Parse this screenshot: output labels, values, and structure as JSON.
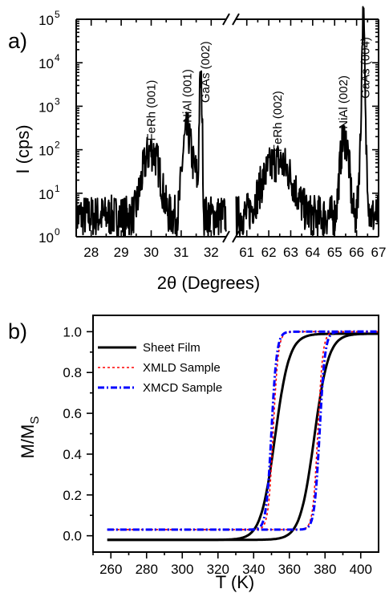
{
  "chart_data": [
    {
      "panel": "a)",
      "type": "line",
      "ylabel": "I (cps)",
      "xlabel": "2θ (Degrees)",
      "yscale": "log",
      "ylim": [
        1,
        100000
      ],
      "y_tick_labels": [
        {
          "v": 1,
          "base": "10",
          "exp": "0"
        },
        {
          "v": 10,
          "base": "10",
          "exp": "1"
        },
        {
          "v": 100,
          "base": "10",
          "exp": "2"
        },
        {
          "v": 1000,
          "base": "10",
          "exp": "3"
        },
        {
          "v": 10000,
          "base": "10",
          "exp": "4"
        },
        {
          "v": 100000,
          "base": "10",
          "exp": "5"
        }
      ],
      "x_break": true,
      "x_segments": [
        {
          "xlim": [
            27.5,
            32.5
          ],
          "ticks": [
            "28",
            "29",
            "30",
            "31",
            "32"
          ]
        },
        {
          "xlim": [
            60.5,
            67
          ],
          "ticks": [
            "61",
            "62",
            "63",
            "64",
            "65",
            "66",
            "67"
          ]
        }
      ],
      "peak_labels": [
        {
          "text": "FeRh (001)",
          "x": 30.0,
          "y": 160
        },
        {
          "text": "NiAl (001)",
          "x": 31.2,
          "y": 420
        },
        {
          "text": "GaAs (002)",
          "x": 31.8,
          "y": 1200
        },
        {
          "text": "FeRh (002)",
          "x": 62.4,
          "y": 90
        },
        {
          "text": "NiAl (002)",
          "x": 65.4,
          "y": 300
        },
        {
          "text": "GaAs (004)",
          "x": 66.4,
          "y": 1500
        }
      ],
      "series": [
        {
          "segment": 0,
          "peaks": [
            {
              "x": 30.0,
              "height": 90,
              "width": 0.18
            },
            {
              "x": 31.2,
              "height": 250,
              "width": 0.09
            },
            {
              "x": 31.45,
              "height": 30,
              "width": 0.08
            },
            {
              "x": 31.65,
              "height": 4000,
              "width": 0.025
            }
          ],
          "background": 3
        },
        {
          "segment": 1,
          "peaks": [
            {
              "x": 62.4,
              "height": 50,
              "width": 0.45
            },
            {
              "x": 65.45,
              "height": 180,
              "width": 0.12
            },
            {
              "x": 66.3,
              "height": 100000,
              "width": 0.03
            },
            {
              "x": 66.3,
              "height": 500,
              "width": 0.08
            }
          ],
          "background": 3
        }
      ]
    },
    {
      "panel": "b)",
      "type": "line",
      "ylabel_base": "M/M",
      "ylabel_sub": "S",
      "xlabel": "T (K)",
      "xlim": [
        250,
        410
      ],
      "ylim": [
        -0.08,
        1.08
      ],
      "x_ticks": [
        "260",
        "280",
        "300",
        "320",
        "340",
        "360",
        "380",
        "400"
      ],
      "y_ticks": [
        "0.0",
        "0.2",
        "0.4",
        "0.6",
        "0.8",
        "1.0"
      ],
      "series": [
        {
          "name": "Sheet Film",
          "color": "#000000",
          "dash": "solid",
          "T_heat": 374,
          "T_cool": 352,
          "width": 4.0,
          "low": -0.02,
          "high": 0.99,
          "x_start": 258
        },
        {
          "name": "XMLD Sample",
          "color": "#ff0000",
          "dash": "dot",
          "T_heat": 376,
          "T_cool": 351,
          "width": 1.4,
          "low": 0.03,
          "high": 1.0,
          "x_start": 258
        },
        {
          "name": "XMCD Sample",
          "color": "#0000ff",
          "dash": "dashdot",
          "T_heat": 377,
          "T_cool": 350,
          "width": 1.5,
          "low": 0.03,
          "high": 1.0,
          "x_start": 258
        }
      ]
    }
  ]
}
